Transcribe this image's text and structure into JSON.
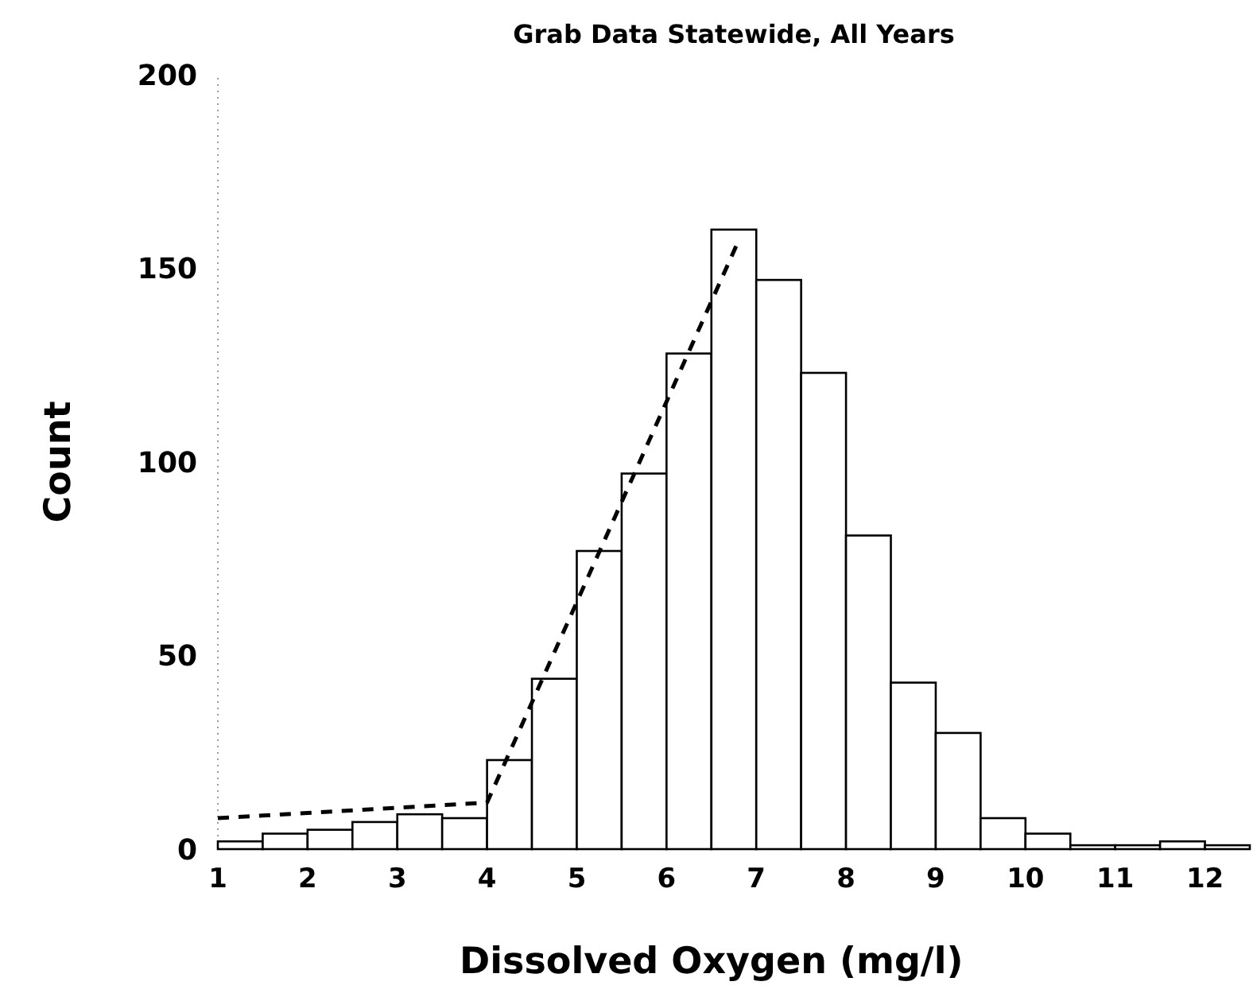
{
  "chart_data": {
    "type": "histogram",
    "title": "Grab Data Statewide, All Years",
    "xlabel": "Dissolved Oxygen (mg/l)",
    "ylabel": "Count",
    "bins": [
      1,
      1.5,
      2,
      2.5,
      3,
      3.5,
      4,
      4.5,
      5,
      5.5,
      6,
      6.5,
      7,
      7.5,
      8,
      8.5,
      9,
      9.5,
      10,
      10.5,
      11,
      11.5,
      12,
      12.5
    ],
    "series": [
      {
        "values": [
          2,
          4,
          5,
          7,
          9,
          8,
          23,
          44,
          77,
          97,
          128,
          160,
          147,
          123,
          81,
          43,
          30,
          8,
          4,
          1,
          1,
          2,
          1
        ],
        "color": "#ffffff"
      },
      {
        "type": "line",
        "x": [
          1,
          4,
          6.8
        ],
        "values": [
          8,
          12,
          157
        ],
        "color": "#000000"
      }
    ],
    "line_style": "dashed",
    "xlim": [
      1,
      12.5
    ],
    "xticks": [
      1,
      2,
      3,
      4,
      5,
      6,
      7,
      8,
      9,
      10,
      11,
      12
    ],
    "ylim": [
      0,
      200
    ],
    "yticks": [
      0,
      50,
      100,
      150,
      200
    ]
  }
}
